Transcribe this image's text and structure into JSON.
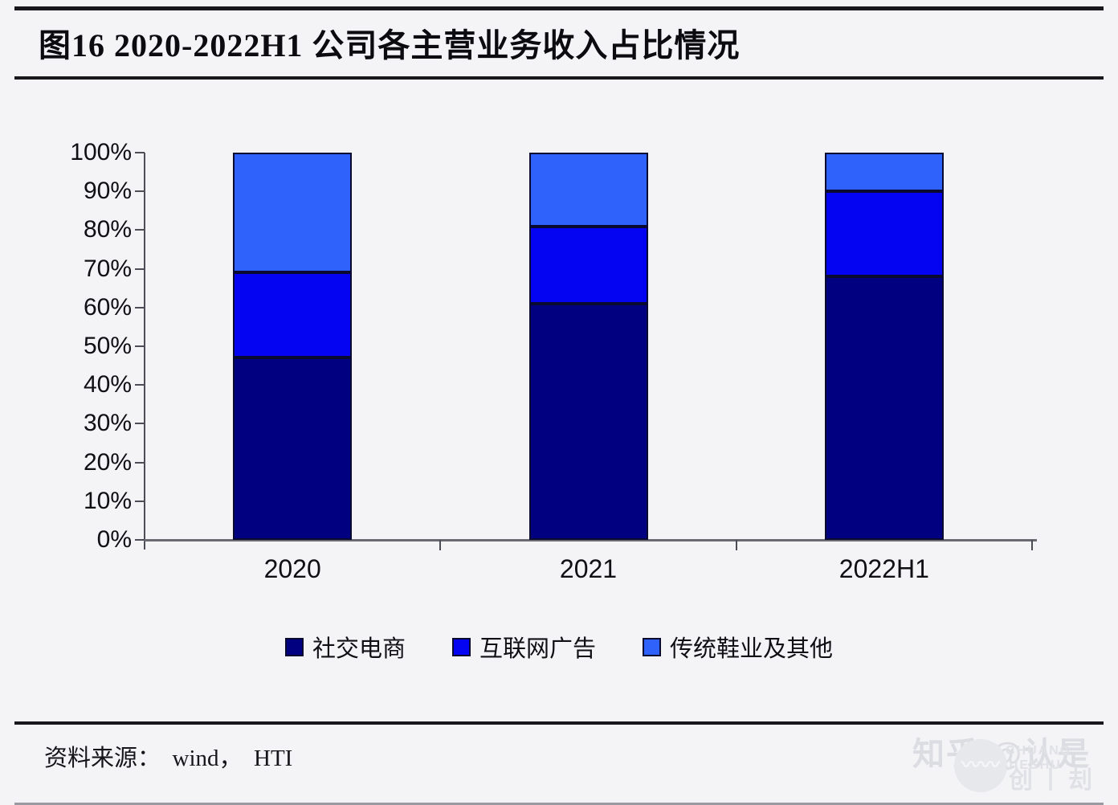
{
  "figure": {
    "title": "图16 2020-2022H1 公司各主营业务收入占比情况",
    "source_label": "资料来源：  wind，  HTI"
  },
  "chart_data": {
    "type": "bar",
    "subtype": "stacked-percent-column",
    "title": "图16 2020-2022H1 公司各主营业务收入占比情况",
    "categories": [
      "2020",
      "2021",
      "2022H1"
    ],
    "series": [
      {
        "name": "社交电商",
        "color": "#000080",
        "values": [
          47,
          61,
          68
        ]
      },
      {
        "name": "互联网广告",
        "color": "#0404f2",
        "values": [
          22,
          20,
          22
        ]
      },
      {
        "name": "传统鞋业及其他",
        "color": "#2f62fb",
        "values": [
          31,
          19,
          10
        ]
      }
    ],
    "xlabel": "",
    "ylabel": "",
    "ylim": [
      0,
      100
    ],
    "ytick_step": 10,
    "ytick_format": "percent",
    "ytick_labels": [
      "0%",
      "10%",
      "20%",
      "30%",
      "40%",
      "50%",
      "60%",
      "70%",
      "80%",
      "90%",
      "100%"
    ],
    "grid": false,
    "legend_position": "bottom"
  },
  "watermark": {
    "zhihu_text": "知乎 @认是",
    "logo_caps": "CHUANG JIESHU",
    "logo_cjk": "创丨刦丨树",
    "wave_glyph": "〰〰"
  },
  "colors": {
    "background": "#f4f4f6",
    "rule": "#17171c",
    "axis": "#4d4d58",
    "baseline": "#6a6a72",
    "segment_border": "#0a0a30",
    "text": "#101014",
    "watermark": "#dcdde2"
  }
}
